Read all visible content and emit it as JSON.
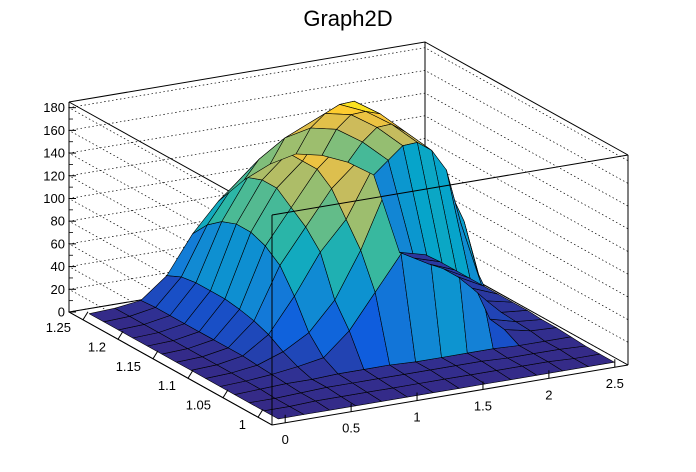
{
  "chart_data": {
    "type": "surface",
    "title": "Graph2D",
    "x_axis": {
      "ticks": [
        0,
        0.5,
        1,
        1.5,
        2,
        2.5
      ],
      "tick_labels": [
        "0",
        "0.5",
        "1",
        "1.5",
        "2",
        "2.5"
      ],
      "range": [
        -0.1,
        2.6
      ]
    },
    "y_axis": {
      "ticks": [
        1,
        1.05,
        1.1,
        1.15,
        1.2,
        1.25
      ],
      "tick_labels": [
        "1",
        "1.05",
        "1.1",
        "1.15",
        "1.2",
        "1.25"
      ],
      "range": [
        0.98,
        1.27
      ]
    },
    "z_axis": {
      "ticks": [
        0,
        20,
        40,
        60,
        80,
        100,
        120,
        140,
        160,
        180
      ],
      "tick_labels": [
        "0",
        "20",
        "40",
        "60",
        "80",
        "100",
        "120",
        "140",
        "160",
        "180"
      ],
      "range": [
        0,
        185
      ]
    },
    "colormap": [
      "#352a87",
      "#0f5cdd",
      "#1481d6",
      "#06a4ca",
      "#2eb7a4",
      "#87bf77",
      "#d1bb59",
      "#fec832",
      "#f9fb0e"
    ],
    "mesh_color": "#000000",
    "grid": true,
    "z_grid": [
      [
        0,
        0,
        0,
        0,
        0,
        0,
        0,
        0,
        0,
        0,
        0,
        0,
        0,
        0
      ],
      [
        0,
        0,
        1,
        1,
        1,
        1,
        1,
        1,
        1,
        1,
        1,
        1,
        0,
        0
      ],
      [
        0,
        0,
        1,
        2,
        2,
        2,
        2,
        2,
        2,
        2,
        1,
        1,
        1,
        0
      ],
      [
        0,
        1,
        2,
        2,
        3,
        3,
        3,
        2,
        2,
        2,
        2,
        1,
        1,
        1
      ],
      [
        0,
        1,
        3,
        6,
        10,
        30,
        60,
        90,
        110,
        120,
        60,
        8,
        3,
        2
      ],
      [
        0,
        1,
        4,
        12,
        25,
        50,
        90,
        140,
        150,
        130,
        100,
        10,
        4,
        2
      ],
      [
        0,
        1,
        5,
        20,
        50,
        85,
        110,
        150,
        160,
        140,
        120,
        30,
        5,
        3
      ],
      [
        0,
        1,
        5,
        25,
        70,
        100,
        130,
        150,
        155,
        150,
        130,
        80,
        8,
        3
      ],
      [
        0,
        1,
        5,
        28,
        80,
        110,
        140,
        160,
        175,
        160,
        140,
        120,
        12,
        3
      ],
      [
        0,
        1,
        5,
        30,
        85,
        120,
        140,
        170,
        185,
        170,
        150,
        130,
        15,
        3
      ],
      [
        0,
        1,
        5,
        30,
        85,
        120,
        140,
        160,
        175,
        165,
        150,
        130,
        15,
        3
      ],
      [
        0,
        1,
        5,
        30,
        80,
        115,
        135,
        150,
        160,
        155,
        140,
        120,
        12,
        3
      ],
      [
        0,
        1,
        5,
        28,
        70,
        100,
        120,
        135,
        140,
        135,
        120,
        100,
        10,
        3
      ],
      [
        0,
        1,
        4,
        22,
        55,
        80,
        95,
        105,
        110,
        105,
        95,
        80,
        8,
        2
      ]
    ]
  }
}
